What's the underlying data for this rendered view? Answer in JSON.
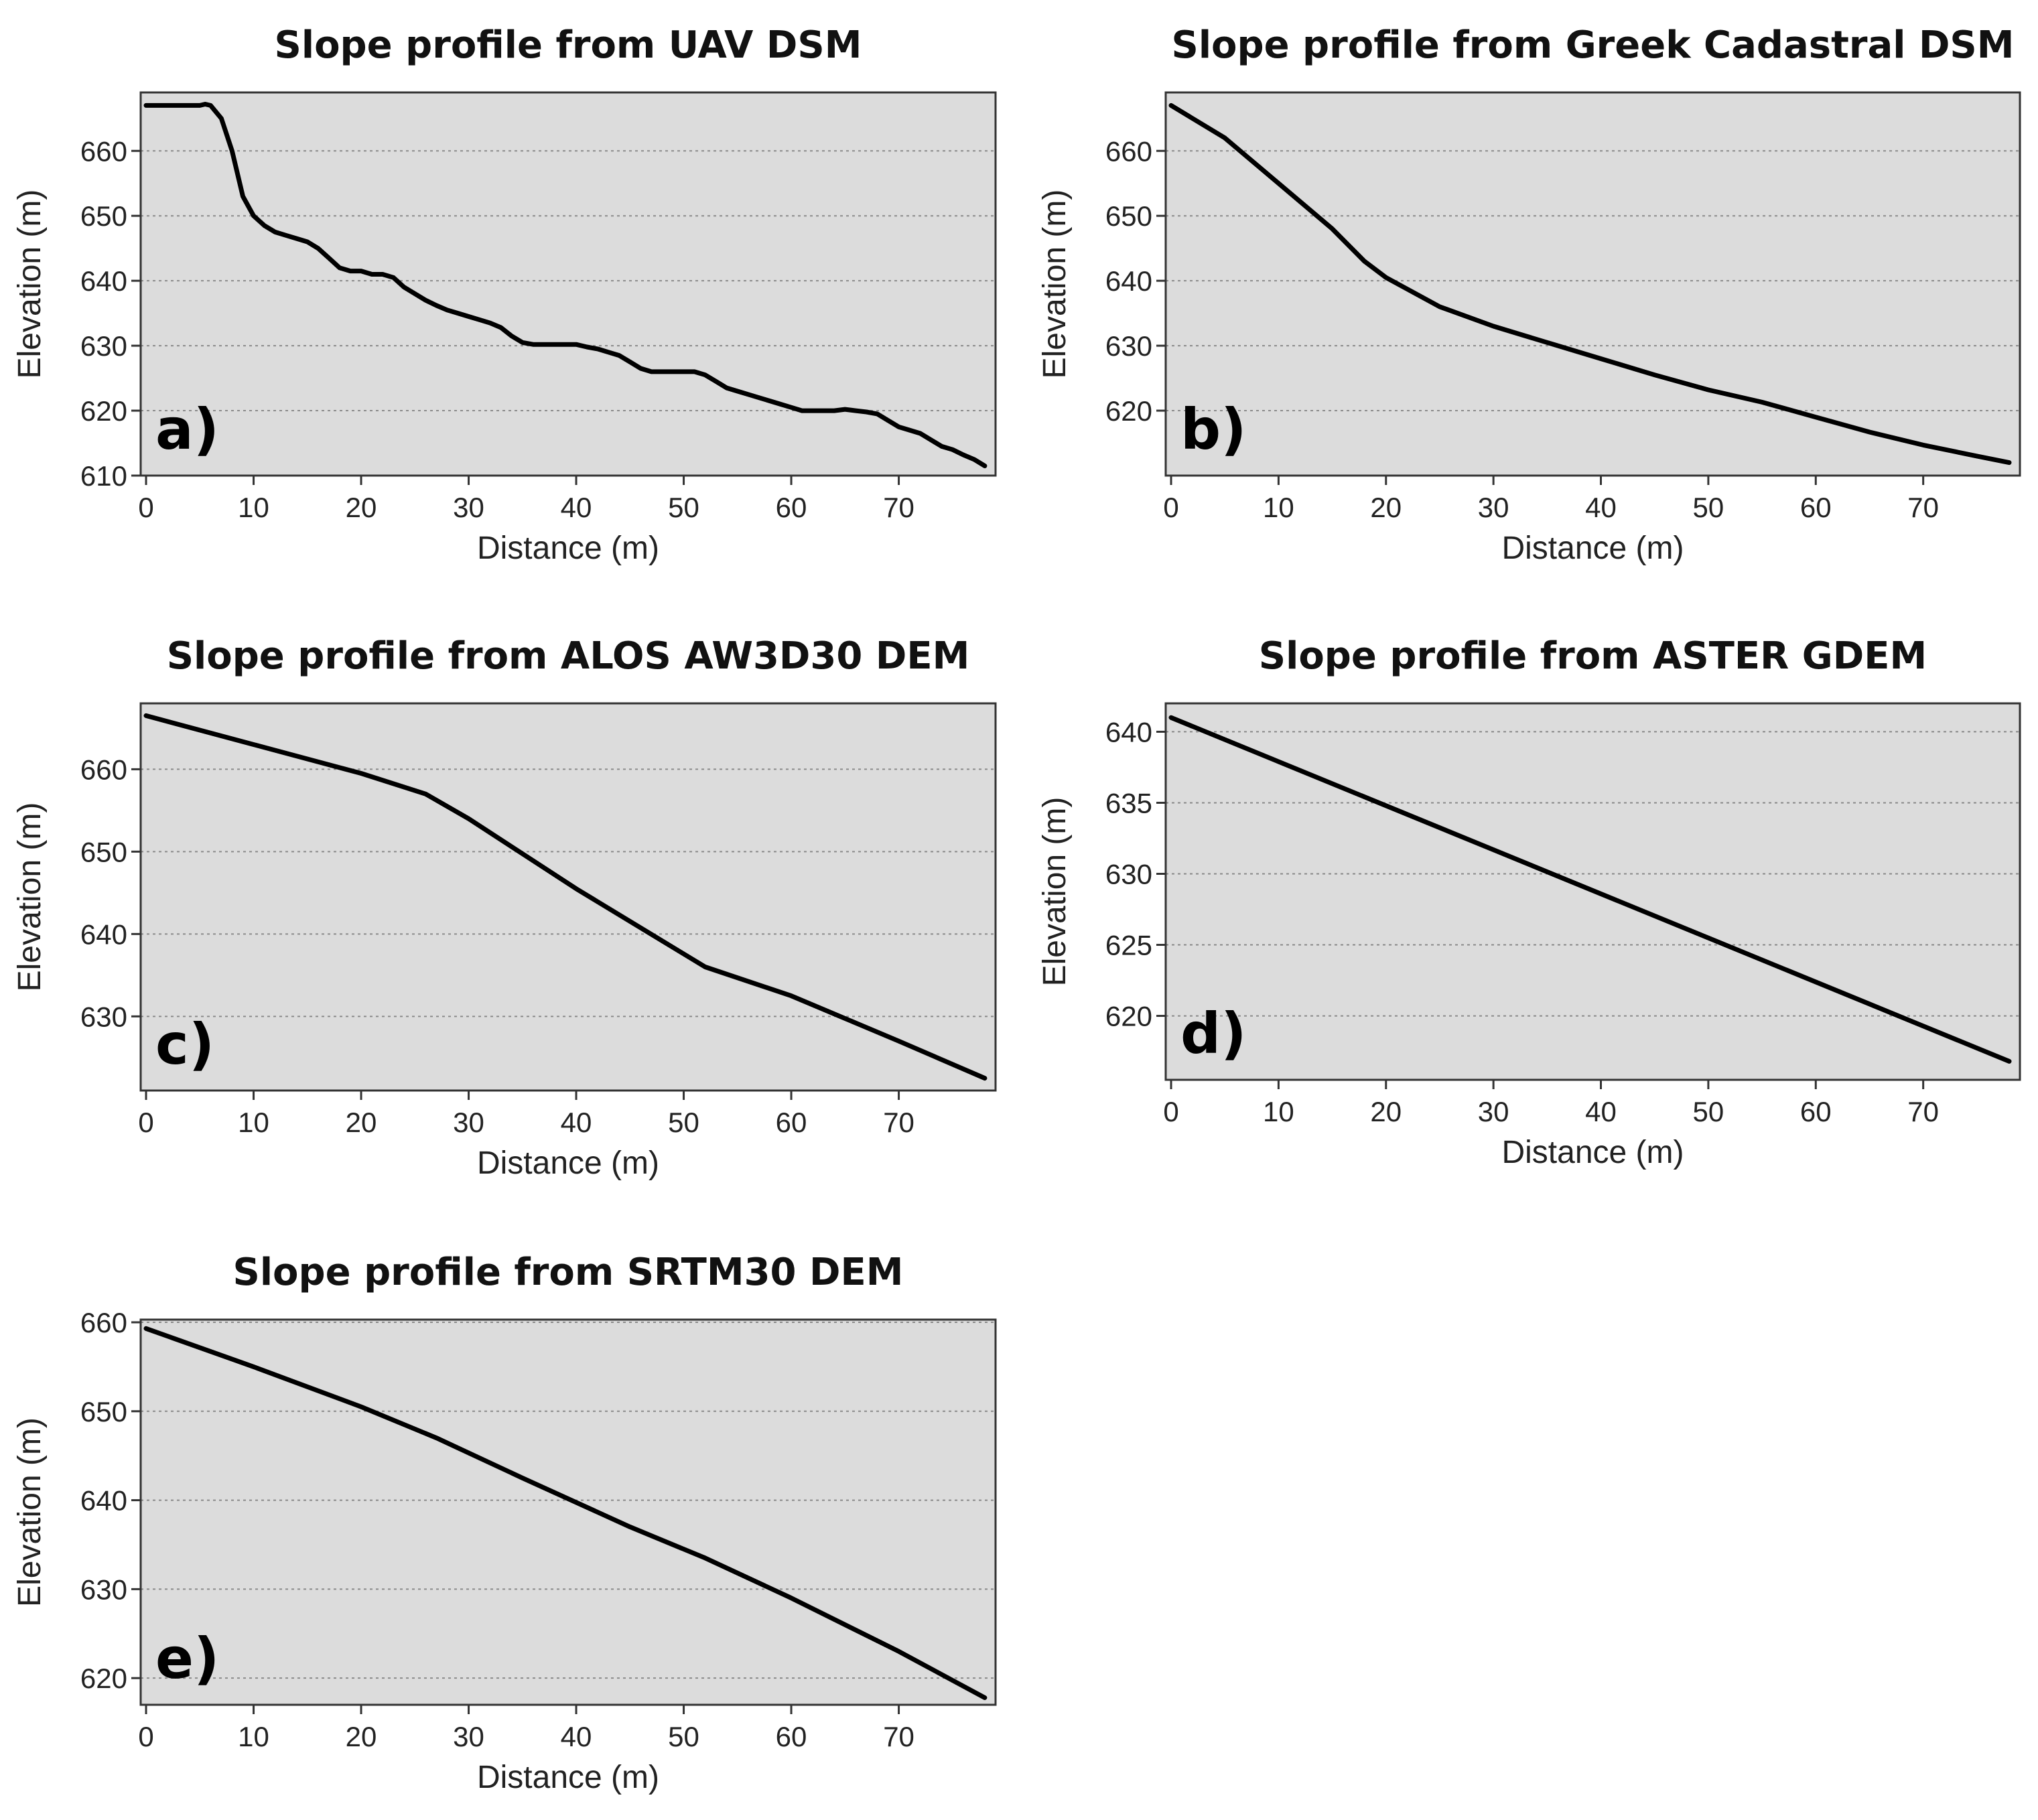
{
  "colors": {
    "plot_background": "#dcdcdc",
    "frame": "#333333",
    "gridline": "#8a8a8a",
    "line": "#000000",
    "page": "#ffffff"
  },
  "chart_data": [
    {
      "type": "line",
      "panel_label": "a)",
      "title": "Slope profile from UAV DSM",
      "xlabel": "Distance (m)",
      "ylabel": "Elevation (m)",
      "xlim": [
        -0.5,
        79
      ],
      "ylim": [
        610,
        669
      ],
      "xticks": [
        0,
        10,
        20,
        30,
        40,
        50,
        60,
        70
      ],
      "yticks": [
        610,
        620,
        630,
        640,
        650,
        660
      ],
      "grid": "horizontal dashed",
      "series": [
        {
          "name": "UAV DSM",
          "x": [
            0,
            2,
            4,
            5,
            5.5,
            6,
            7,
            8,
            9,
            10,
            11,
            12,
            13,
            14,
            15,
            16,
            17,
            18,
            19,
            20,
            21,
            22,
            23,
            24,
            25,
            26,
            27,
            28,
            29,
            30,
            31,
            32,
            33,
            34,
            35,
            36,
            37,
            38,
            39,
            40,
            41,
            42,
            43,
            44,
            45,
            46,
            47,
            48,
            49,
            50,
            51,
            52,
            53,
            54,
            55,
            56,
            57,
            58,
            59,
            60,
            61,
            62,
            63,
            64,
            65,
            66,
            67,
            68,
            69,
            70,
            71,
            72,
            73,
            74,
            75,
            76,
            77,
            78
          ],
          "y": [
            667,
            667,
            667,
            667,
            667.2,
            667,
            665,
            660,
            653,
            650,
            648.5,
            647.5,
            647,
            646.5,
            646,
            645,
            643.5,
            642,
            641.5,
            641.5,
            641,
            641,
            640.5,
            639,
            638,
            637,
            636.2,
            635.5,
            635,
            634.5,
            634,
            633.5,
            632.8,
            631.5,
            630.5,
            630.2,
            630.2,
            630.2,
            630.2,
            630.2,
            629.8,
            629.5,
            629,
            628.5,
            627.5,
            626.5,
            626,
            626,
            626,
            626,
            626,
            625.5,
            624.5,
            623.5,
            623,
            622.5,
            622,
            621.5,
            621,
            620.5,
            620,
            620,
            620,
            620,
            620.2,
            620,
            619.8,
            619.5,
            618.5,
            617.5,
            617,
            616.5,
            615.5,
            614.5,
            614,
            613.2,
            612.5,
            611.5
          ]
        }
      ]
    },
    {
      "type": "line",
      "panel_label": "b)",
      "title": "Slope profile from Greek Cadastral DSM",
      "xlabel": "Distance (m)",
      "ylabel": "Elevation (m)",
      "xlim": [
        -0.5,
        79
      ],
      "ylim": [
        610,
        669
      ],
      "xticks": [
        0,
        10,
        20,
        30,
        40,
        50,
        60,
        70
      ],
      "yticks": [
        620,
        630,
        640,
        650,
        660
      ],
      "grid": "horizontal dashed",
      "series": [
        {
          "name": "Greek Cadastral DSM",
          "x": [
            0,
            5,
            10,
            15,
            18,
            20,
            25,
            30,
            35,
            40,
            45,
            50,
            55,
            60,
            65,
            70,
            75,
            78
          ],
          "y": [
            667,
            662,
            655,
            648,
            643,
            640.5,
            636,
            633,
            630.5,
            628,
            625.5,
            623.2,
            621.3,
            619,
            616.7,
            614.7,
            613,
            612
          ]
        }
      ]
    },
    {
      "type": "line",
      "panel_label": "c)",
      "title": "Slope profile from ALOS AW3D30 DEM",
      "xlabel": "Distance (m)",
      "ylabel": "Elevation (m)",
      "xlim": [
        -0.5,
        79
      ],
      "ylim": [
        621,
        668
      ],
      "xticks": [
        0,
        10,
        20,
        30,
        40,
        50,
        60,
        70
      ],
      "yticks": [
        630,
        640,
        650,
        660
      ],
      "grid": "horizontal dashed",
      "series": [
        {
          "name": "ALOS AW3D30 DEM",
          "x": [
            0,
            10,
            20,
            26,
            30,
            40,
            52,
            60,
            70,
            78
          ],
          "y": [
            666.5,
            663,
            659.5,
            657,
            654,
            645.5,
            636,
            632.5,
            627,
            622.5
          ]
        }
      ]
    },
    {
      "type": "line",
      "panel_label": "d)",
      "title": "Slope profile from ASTER GDEM",
      "xlabel": "Distance (m)",
      "ylabel": "Elevation (m)",
      "xlim": [
        -0.5,
        79
      ],
      "ylim": [
        615.5,
        642
      ],
      "xticks": [
        0,
        10,
        20,
        30,
        40,
        50,
        60,
        70
      ],
      "yticks": [
        620,
        625,
        630,
        635,
        640
      ],
      "grid": "horizontal dashed",
      "series": [
        {
          "name": "ASTER GDEM",
          "x": [
            0,
            78
          ],
          "y": [
            641,
            616.8
          ]
        }
      ]
    },
    {
      "type": "line",
      "panel_label": "e)",
      "title": "Slope profile from SRTM30 DEM",
      "xlabel": "Distance (m)",
      "ylabel": "Elevation (m)",
      "xlim": [
        -0.5,
        79
      ],
      "ylim": [
        617,
        660.3
      ],
      "xticks": [
        0,
        10,
        20,
        30,
        40,
        50,
        60,
        70
      ],
      "yticks": [
        620,
        630,
        640,
        650,
        660
      ],
      "grid": "horizontal dashed",
      "series": [
        {
          "name": "SRTM30 DEM",
          "x": [
            0,
            10,
            20,
            27,
            35,
            45,
            52,
            60,
            70,
            78
          ],
          "y": [
            659.3,
            655,
            650.5,
            647,
            642.5,
            637,
            633.5,
            629,
            623,
            617.8
          ]
        }
      ]
    }
  ]
}
